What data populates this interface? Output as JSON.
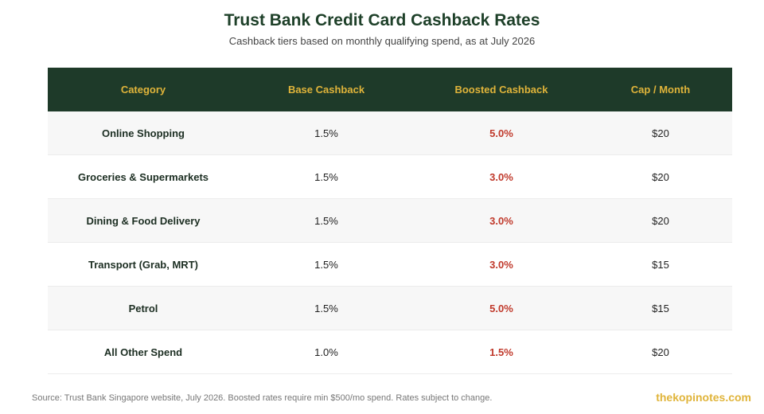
{
  "title": "Trust Bank Credit Card Cashback Rates",
  "subtitle": "Cashback tiers based on monthly qualifying spend, as at July 2026",
  "table": {
    "headers": [
      "Category",
      "Base Cashback",
      "Boosted Cashback",
      "Cap / Month"
    ],
    "rows": [
      {
        "category": "Online Shopping",
        "base": "1.5%",
        "boosted": "5.0%",
        "cap": "$20"
      },
      {
        "category": "Groceries & Supermarkets",
        "base": "1.5%",
        "boosted": "3.0%",
        "cap": "$20"
      },
      {
        "category": "Dining & Food Delivery",
        "base": "1.5%",
        "boosted": "3.0%",
        "cap": "$20"
      },
      {
        "category": "Transport (Grab, MRT)",
        "base": "1.5%",
        "boosted": "3.0%",
        "cap": "$15"
      },
      {
        "category": "Petrol",
        "base": "1.5%",
        "boosted": "5.0%",
        "cap": "$15"
      },
      {
        "category": "All Other Spend",
        "base": "1.0%",
        "boosted": "1.5%",
        "cap": "$20"
      }
    ]
  },
  "footer": {
    "source": "Source: Trust Bank Singapore website, July 2026. Boosted rates require min $500/mo spend. Rates subject to change.",
    "brand": "thekopinotes.com"
  },
  "colors": {
    "header_bg": "#1e3a29",
    "header_text": "#e0b43a",
    "title": "#1e4029",
    "boosted_text": "#c0392b",
    "brand": "#e0b43a"
  }
}
